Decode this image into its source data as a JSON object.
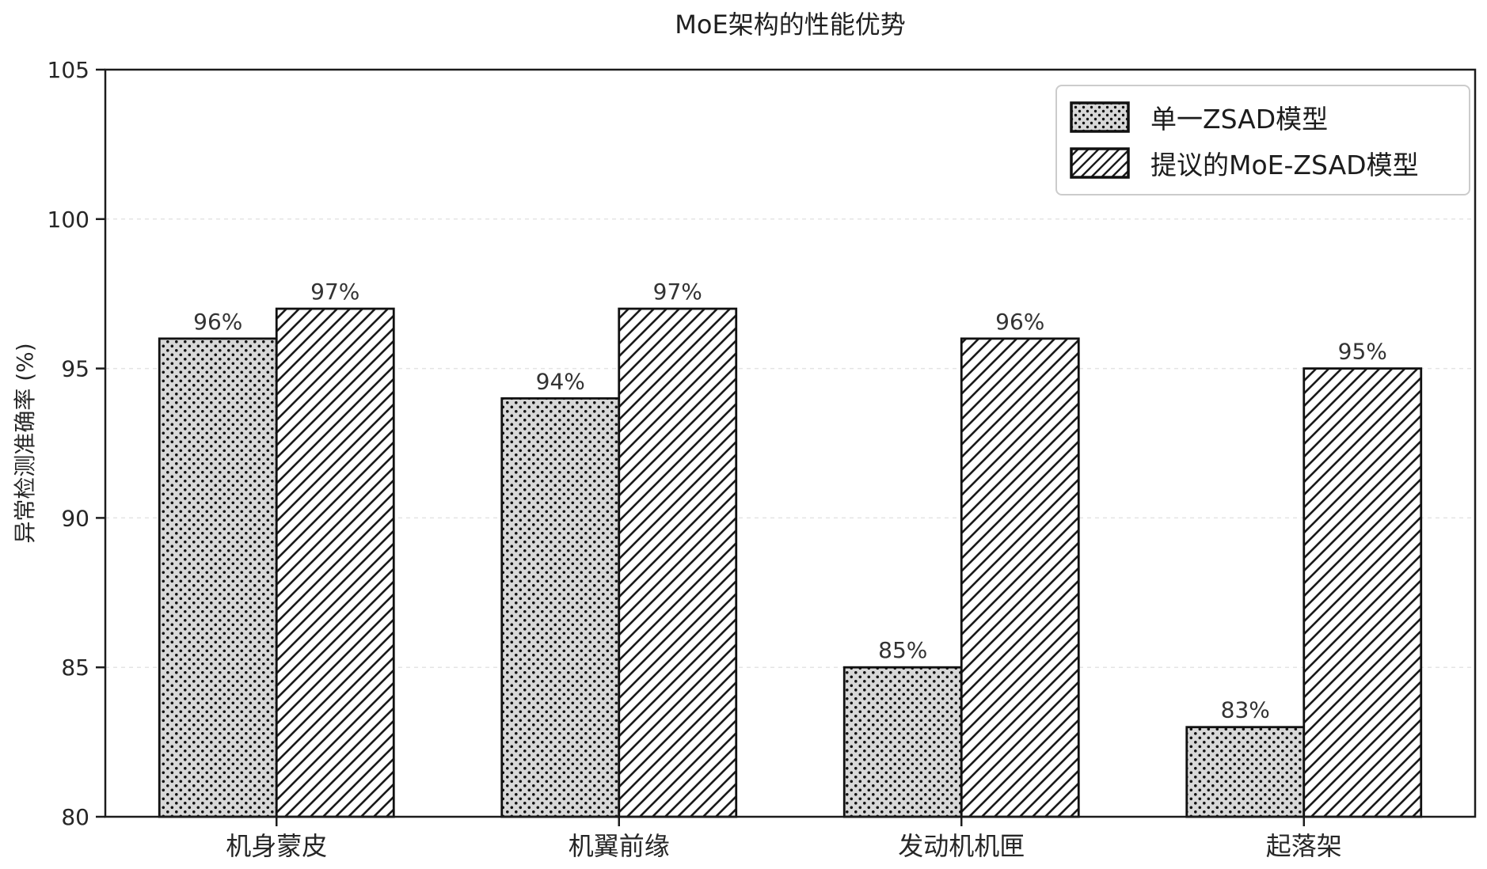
{
  "title": "MoE架构的性能优势",
  "chart_data": {
    "type": "bar",
    "title": "MoE架构的性能优势",
    "xlabel": "",
    "ylabel": "异常检测准确率 (%)",
    "categories": [
      "机身蒙皮",
      "机翼前缘",
      "发动机机匣",
      "起落架"
    ],
    "series": [
      {
        "name": "单一ZSAD模型",
        "pattern": "dots",
        "values": [
          96,
          94,
          85,
          83
        ],
        "value_labels": [
          "96%",
          "94%",
          "85%",
          "83%"
        ]
      },
      {
        "name": "提议的MoE-ZSAD模型",
        "pattern": "hatch",
        "values": [
          97,
          97,
          96,
          95
        ],
        "value_labels": [
          "97%",
          "97%",
          "96%",
          "95%"
        ]
      }
    ],
    "ylim": [
      80,
      105
    ],
    "yticks": [
      80,
      85,
      90,
      95,
      100,
      105
    ],
    "grid": "horizontal-dashed",
    "legend_position": "upper-right"
  },
  "colors": {
    "text": "#262626",
    "spine": "#1c1c1c",
    "bar_outline": "#111111",
    "dots_fill": "#d8d8d8",
    "dots_dot": "#111111",
    "hatch_fill": "#ffffff",
    "hatch_line": "#1a1a1a",
    "gridline": "#e4e4e4",
    "legend_border": "#cccccc",
    "background": "#ffffff"
  }
}
